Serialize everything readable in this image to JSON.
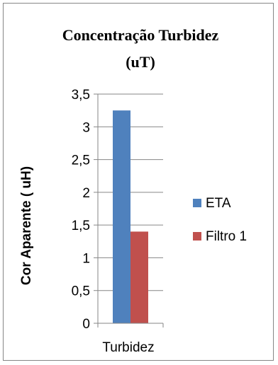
{
  "chart_data": {
    "type": "bar",
    "title_line1": "Concentração Turbidez",
    "title_line2": "(uT)",
    "ylabel": "Cor Aparente ( uH)",
    "categories": [
      "Turbidez"
    ],
    "series": [
      {
        "name": "ETA",
        "values": [
          3.25
        ],
        "color": "#4f81bd"
      },
      {
        "name": "Filtro 1",
        "values": [
          1.4
        ],
        "color": "#c0504d"
      }
    ],
    "ylim": [
      0,
      3.5
    ],
    "yticks": [
      0,
      0.5,
      1,
      1.5,
      2,
      2.5,
      3,
      3.5
    ],
    "ytick_labels": [
      "0",
      "0,5",
      "1",
      "1,5",
      "2",
      "2,5",
      "3",
      "3,5"
    ],
    "grid": true,
    "legend_position": "right"
  }
}
